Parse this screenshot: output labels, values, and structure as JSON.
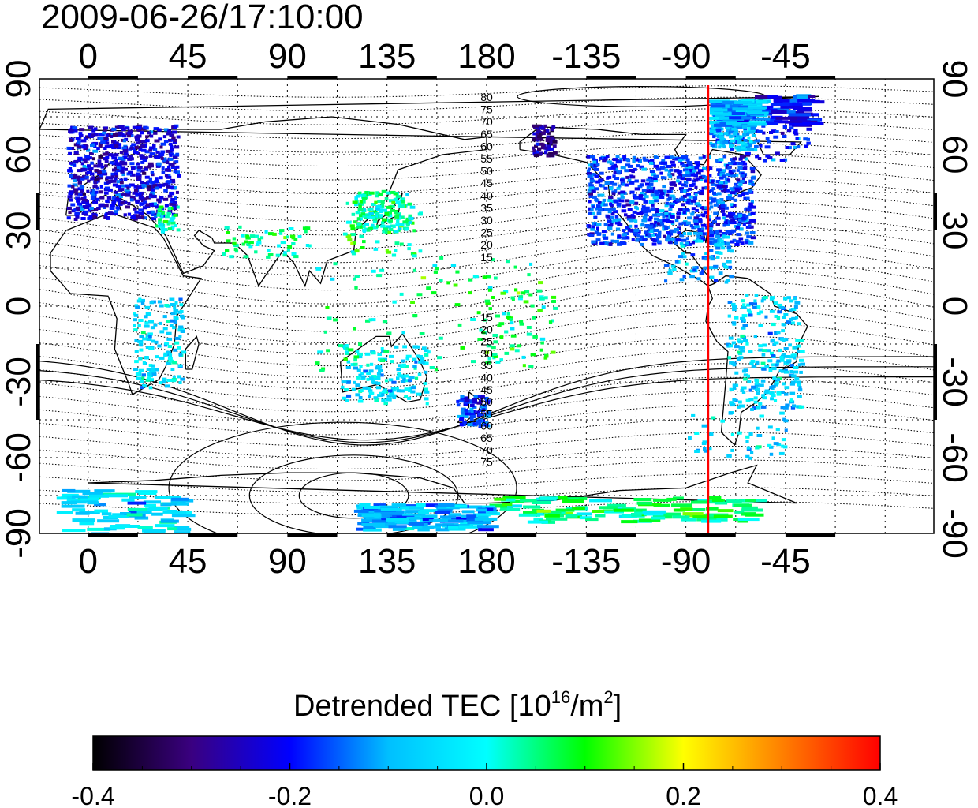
{
  "timestamp": "2009-06-26/17:10:00",
  "map": {
    "x_axis_top_labels": [
      "0",
      "45",
      "90",
      "135",
      "180",
      "-135",
      "-90",
      "-45"
    ],
    "x_axis_bottom_labels": [
      "0",
      "45",
      "90",
      "135",
      "180",
      "-135",
      "-90",
      "-45"
    ],
    "y_axis_left_labels": [
      "90",
      "60",
      "30",
      "0",
      "-30",
      "-60",
      "-90"
    ],
    "y_axis_right_labels": [
      "90",
      "60",
      "30",
      "0",
      "-30",
      "-60",
      "-90"
    ],
    "x_range_deg": [
      -22,
      382
    ],
    "y_range_deg": [
      -90,
      90
    ],
    "grid": "dotted",
    "terminator_longitude_deg": -80,
    "terminator_color": "#ff0000",
    "contour_labels_north": [
      "80",
      "75",
      "70",
      "65",
      "60",
      "55",
      "50",
      "45",
      "40",
      "35",
      "30",
      "25",
      "20",
      "15"
    ],
    "contour_labels_south": [
      "15",
      "20",
      "25",
      "30",
      "35",
      "40",
      "45",
      "50",
      "55",
      "60",
      "65",
      "70",
      "75"
    ]
  },
  "colorbar": {
    "title_prefix": "Detrended TEC  [10",
    "title_exp1": "16",
    "title_mid": "/m",
    "title_exp2": "2",
    "title_suffix": "]",
    "tick_labels": [
      "-0.4",
      "-0.2",
      "0.0",
      "0.2",
      "0.4"
    ],
    "range": [
      -0.4,
      0.4
    ],
    "colors": [
      "#000000",
      "#3a0080",
      "#0000ff",
      "#00bfff",
      "#00ffff",
      "#00ff00",
      "#ffff00",
      "#ff8000",
      "#ff0000"
    ]
  }
}
